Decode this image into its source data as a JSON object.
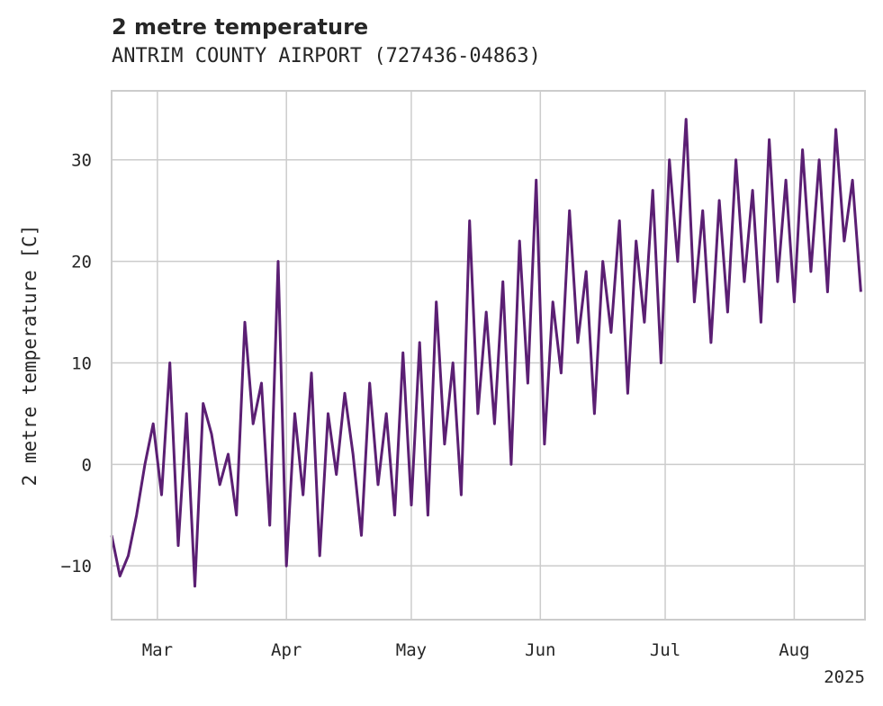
{
  "chart_data": {
    "type": "line",
    "title": "2 metre temperature",
    "subtitle": "ANTRIM COUNTY AIRPORT (727436-04863)",
    "xlabel": "",
    "ylabel": "2 metre temperature [C]",
    "x_tick_labels": [
      "Mar",
      "Apr",
      "May",
      "Jun",
      "Jul",
      "Aug"
    ],
    "x_offset_label": "2025",
    "y_tick_labels": [
      "−10",
      "0",
      "10",
      "20",
      "30"
    ],
    "y_ticks": [
      -10,
      0,
      10,
      20,
      30
    ],
    "ylim": [
      -15.3,
      36.8
    ],
    "xlim": [
      "2025-02-18",
      "2025-08-18"
    ],
    "grid": true,
    "legend": "none",
    "color": "#5b1f73",
    "series": [
      {
        "x": [
          "2025-02-18",
          "2025-02-20",
          "2025-02-22",
          "2025-02-24",
          "2025-02-26",
          "2025-02-28",
          "2025-03-02",
          "2025-03-04",
          "2025-03-06",
          "2025-03-08",
          "2025-03-10",
          "2025-03-12",
          "2025-03-14",
          "2025-03-16",
          "2025-03-18",
          "2025-03-20",
          "2025-03-22",
          "2025-03-24",
          "2025-03-26",
          "2025-03-28",
          "2025-03-30",
          "2025-04-01",
          "2025-04-03",
          "2025-04-05",
          "2025-04-07",
          "2025-04-09",
          "2025-04-11",
          "2025-04-13",
          "2025-04-15",
          "2025-04-17",
          "2025-04-19",
          "2025-04-21",
          "2025-04-23",
          "2025-04-25",
          "2025-04-27",
          "2025-04-29",
          "2025-05-01",
          "2025-05-03",
          "2025-05-05",
          "2025-05-07",
          "2025-05-09",
          "2025-05-11",
          "2025-05-13",
          "2025-05-15",
          "2025-05-17",
          "2025-05-19",
          "2025-05-21",
          "2025-05-23",
          "2025-05-25",
          "2025-05-27",
          "2025-05-29",
          "2025-05-31",
          "2025-06-02",
          "2025-06-04",
          "2025-06-06",
          "2025-06-08",
          "2025-06-10",
          "2025-06-12",
          "2025-06-14",
          "2025-06-16",
          "2025-06-18",
          "2025-06-20",
          "2025-06-22",
          "2025-06-24",
          "2025-06-26",
          "2025-06-28",
          "2025-06-30",
          "2025-07-02",
          "2025-07-04",
          "2025-07-06",
          "2025-07-08",
          "2025-07-10",
          "2025-07-12",
          "2025-07-14",
          "2025-07-16",
          "2025-07-18",
          "2025-07-20",
          "2025-07-22",
          "2025-07-24",
          "2025-07-26",
          "2025-07-28",
          "2025-07-30",
          "2025-08-01",
          "2025-08-03",
          "2025-08-05",
          "2025-08-07",
          "2025-08-09",
          "2025-08-11",
          "2025-08-13",
          "2025-08-15",
          "2025-08-17"
        ],
        "y": [
          -7,
          -11,
          -9,
          -5,
          0,
          4,
          -3,
          10,
          -8,
          5,
          -12,
          6,
          3,
          -2,
          1,
          -5,
          14,
          4,
          8,
          -6,
          20,
          -10,
          5,
          -3,
          9,
          -9,
          5,
          -1,
          7,
          1,
          -7,
          8,
          -2,
          5,
          -5,
          11,
          -4,
          12,
          -5,
          16,
          2,
          10,
          -3,
          24,
          5,
          15,
          4,
          18,
          0,
          22,
          8,
          28,
          2,
          16,
          9,
          25,
          12,
          19,
          5,
          20,
          13,
          24,
          7,
          22,
          14,
          27,
          10,
          30,
          20,
          34,
          16,
          25,
          12,
          26,
          15,
          30,
          18,
          27,
          14,
          32,
          18,
          28,
          16,
          31,
          19,
          30,
          17,
          33,
          22,
          28,
          17
        ]
      }
    ]
  }
}
